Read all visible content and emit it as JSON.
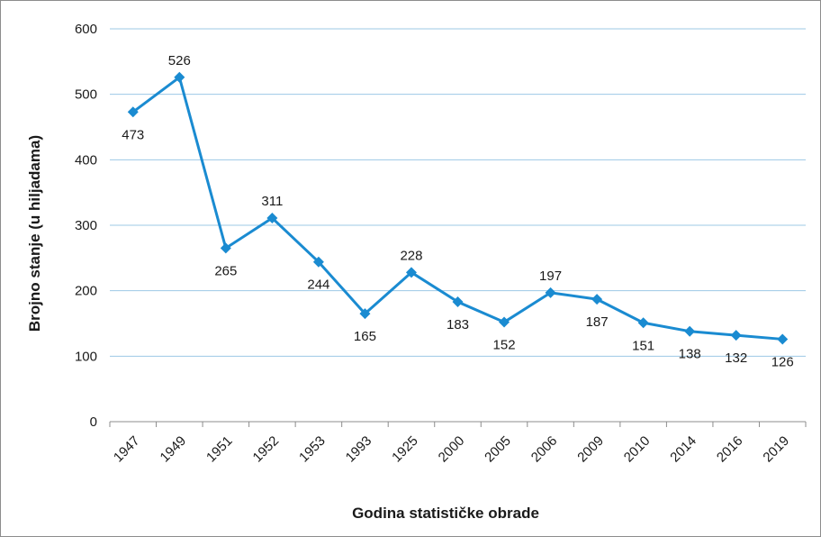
{
  "chart_data": {
    "type": "line",
    "title": "",
    "xlabel": "Godina statističke obrade",
    "ylabel": "Brojno stanje (u hiljadama)",
    "ylim": [
      0,
      600
    ],
    "yticks": [
      0,
      100,
      200,
      300,
      400,
      500,
      600
    ],
    "grid": true,
    "legend": "none",
    "categories": [
      "1947",
      "1949",
      "1951",
      "1952",
      "1953",
      "1993",
      "1925",
      "2000",
      "2005",
      "2006",
      "2009",
      "2010",
      "2014",
      "2016",
      "2019"
    ],
    "series": [
      {
        "values": [
          473,
          526,
          265,
          311,
          244,
          165,
          228,
          183,
          152,
          197,
          187,
          151,
          138,
          132,
          126
        ],
        "data_labels": [
          "473",
          "526",
          "265",
          "311",
          "244",
          "165",
          "228",
          "183",
          "152",
          "197",
          "187",
          "151",
          "138",
          "132",
          "126"
        ],
        "color": "#1a8bd1"
      }
    ],
    "gridline_color": "#9dc8e6",
    "axis_color": "#8c8c8c"
  }
}
